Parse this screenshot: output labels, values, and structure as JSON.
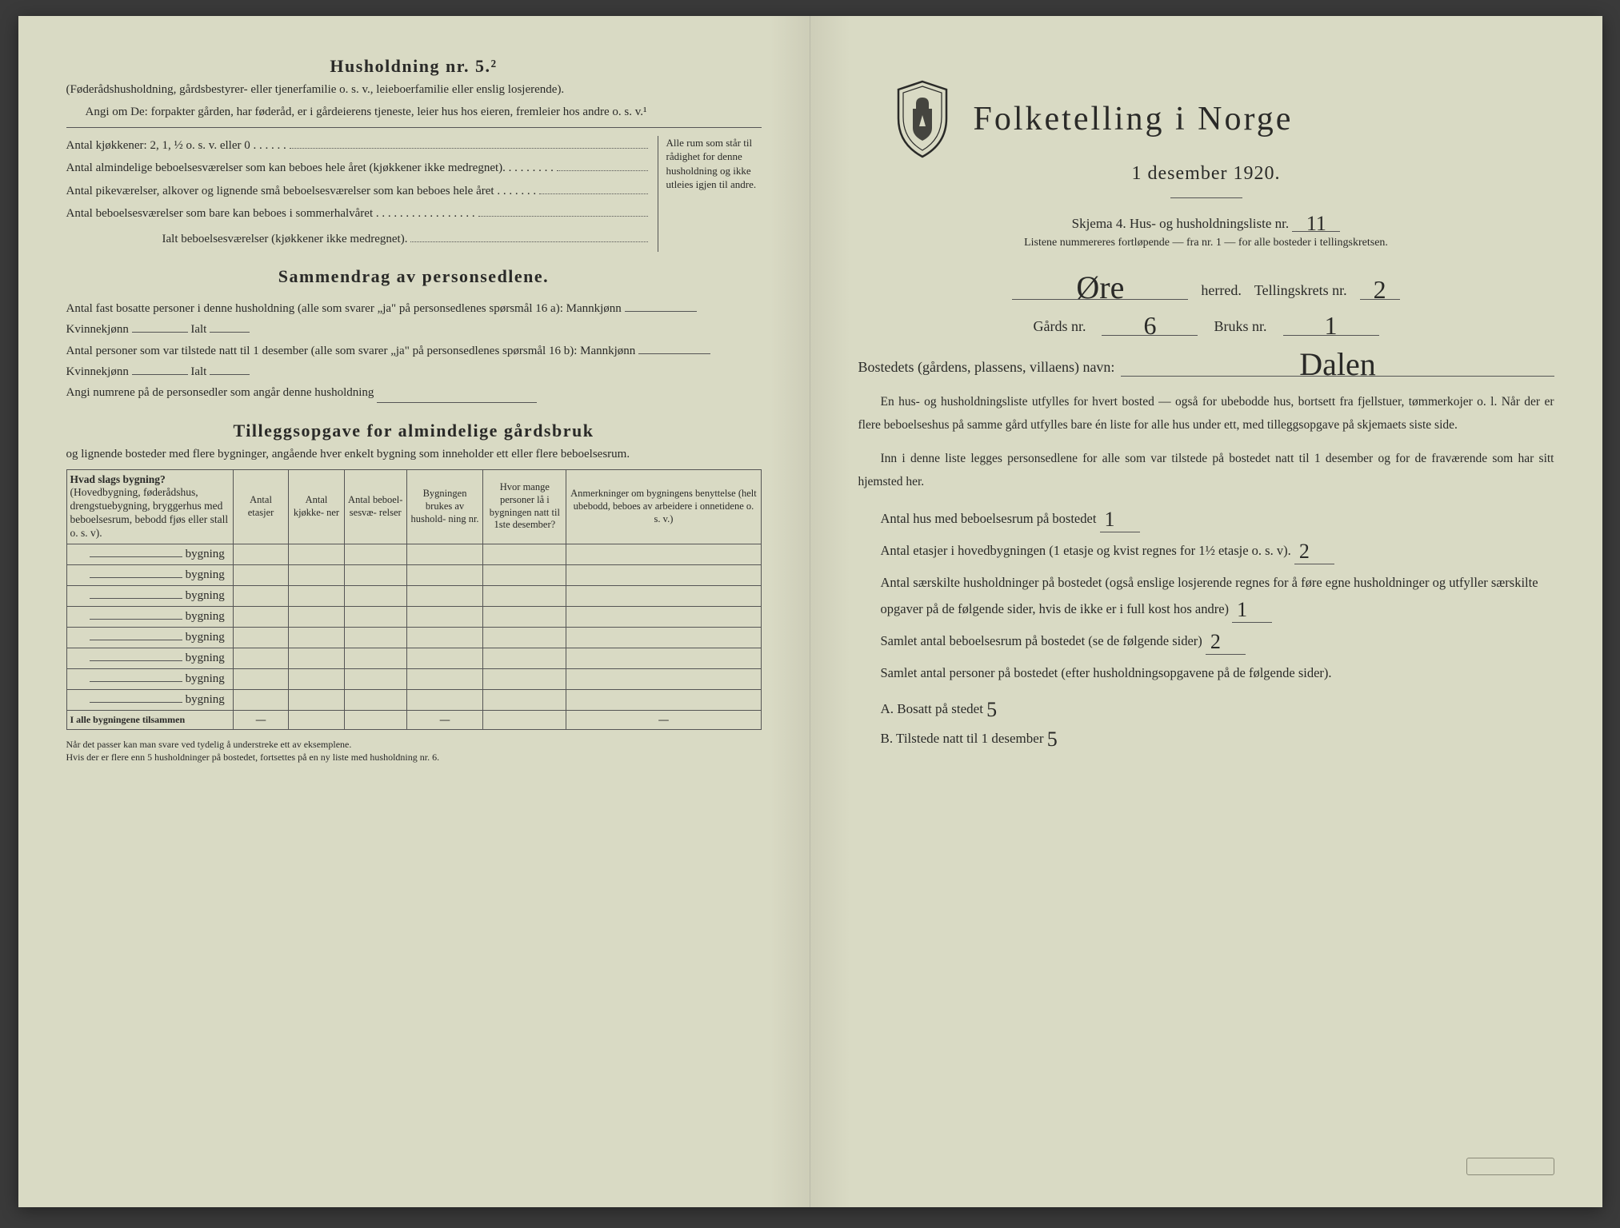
{
  "left": {
    "husholdning_title": "Husholdning nr. 5.²",
    "husholdning_sub": "(Føderådshusholdning, gårdsbestyrer- eller tjenerfamilie o. s. v., leieboerfamilie eller enslig losjerende).",
    "angi_om": "Angi om De:  forpakter gården, har føderåd, er i gårdeierens tjeneste, leier hus hos eieren, fremleier hos andre o. s. v.¹",
    "rows": [
      "Antal kjøkkener: 2, 1, ½ o. s. v. eller 0 . . . . . .",
      "Antal almindelige beboelsesværelser som kan beboes hele året (kjøkkener ikke medregnet). . . . . . . . .",
      "Antal pikeværelser, alkover og lignende små beboelsesværelser som kan beboes hele året . . . . . . .",
      "Antal beboelsesværelser som bare kan beboes i sommerhalvåret . . . . . . . . . . . . . . . . ."
    ],
    "ialt": "Ialt beboelsesværelser  (kjøkkener ikke medregnet).",
    "side_text": "Alle rum som står til rådighet for denne husholdning og ikke utleies igjen til andre.",
    "sammendrag_title": "Sammendrag av personsedlene.",
    "sammendrag_1": "Antal fast bosatte personer i denne husholdning (alle som svarer „ja\" på personsedlenes spørsmål 16 a): Mannkjønn",
    "kvinnekjonn": "Kvinnekjønn",
    "ialt_label": "Ialt",
    "sammendrag_2": "Antal personer som var tilstede natt til 1 desember (alle som svarer „ja\" på personsedlenes spørsmål 16 b): Mannkjønn",
    "angi_numrene": "Angi numrene på de personsedler som angår denne husholdning",
    "tillegg_title": "Tilleggsopgave for almindelige gårdsbruk",
    "tillegg_sub": "og lignende bosteder med flere bygninger, angående hver enkelt bygning som inneholder ett eller flere beboelsesrum.",
    "table": {
      "headers": [
        "Hvad slags bygning?\n(Hovedbygning, føderådshus, drengstuebygning, bryggerhus med beboelsesrum, bebodd fjøs eller stall o. s. v).",
        "Antal\netasjer",
        "Antal\nkjøkke-\nner",
        "Antal\nbeboel-\nsesvæ-\nrelser",
        "Bygningen\nbrukes av\nhushold-\nning nr.",
        "Hvor mange\npersoner lå\ni bygningen\nnatt til 1ste\ndesember?",
        "Anmerkninger om bygningens benyttelse (helt ubebodd, beboes av arbeidere i onnetidene o. s. v.)"
      ],
      "row_label": "bygning",
      "row_count": 8,
      "total_label": "I alle bygningene tilsammen",
      "dash": "—"
    },
    "footnote": "Når det passer kan man svare ved tydelig å understreke ett av eksemplene.\nHvis der er flere enn 5 husholdninger på bostedet, fortsettes på en ny liste med husholdning nr. 6."
  },
  "right": {
    "main_title": "Folketelling i Norge",
    "date": "1 desember 1920.",
    "skjema": "Skjema 4.  Hus- og husholdningsliste nr.",
    "skjema_val": "11",
    "listene": "Listene nummereres fortløpende — fra nr. 1 — for alle bosteder i tellingskretsen.",
    "herred_val": "Øre",
    "herred_label": "herred.",
    "krets_label": "Tellingskrets nr.",
    "krets_val": "2",
    "gards_label": "Gårds nr.",
    "gards_val": "6",
    "bruks_label": "Bruks nr.",
    "bruks_val": "1",
    "bostedets": "Bostedets (gårdens, plassens, villaens) navn:",
    "bostedets_val": "Dalen",
    "para1": "En hus- og husholdningsliste utfylles for hvert bosted — også for ubebodde hus, bortsett fra fjellstuer, tømmerkojer o. l.  Når der er flere beboelseshus på samme gård utfylles bare én liste for alle hus under ett, med tilleggsopgave på skjemaets siste side.",
    "para2": "Inn i denne liste legges personsedlene for alle som var tilstede på bostedet natt til 1 desember og for de fraværende som har sitt hjemsted her.",
    "f1": "Antal hus med beboelsesrum på bostedet",
    "f1_val": "1",
    "f2a": "Antal etasjer i hovedbygningen (1 etasje og kvist regnes for 1½ etasje o. s. v).",
    "f2_val": "2",
    "f3": "Antal særskilte husholdninger på bostedet (også enslige losjerende regnes for å føre egne husholdninger og utfyller særskilte opgaver på de følgende sider, hvis de ikke er i full kost hos andre)",
    "f3_val": "1",
    "f4": "Samlet antal beboelsesrum på bostedet (se de følgende sider)",
    "f4_val": "2",
    "f5": "Samlet antal personer på bostedet (efter husholdningsopgavene på de følgende sider).",
    "a_label": "A.  Bosatt på stedet",
    "a_val": "5",
    "b_label": "B.  Tilstede natt til 1 desember",
    "b_val": "5"
  },
  "colors": {
    "paper": "#d9dac4",
    "ink": "#2a2a28",
    "line": "#555"
  }
}
